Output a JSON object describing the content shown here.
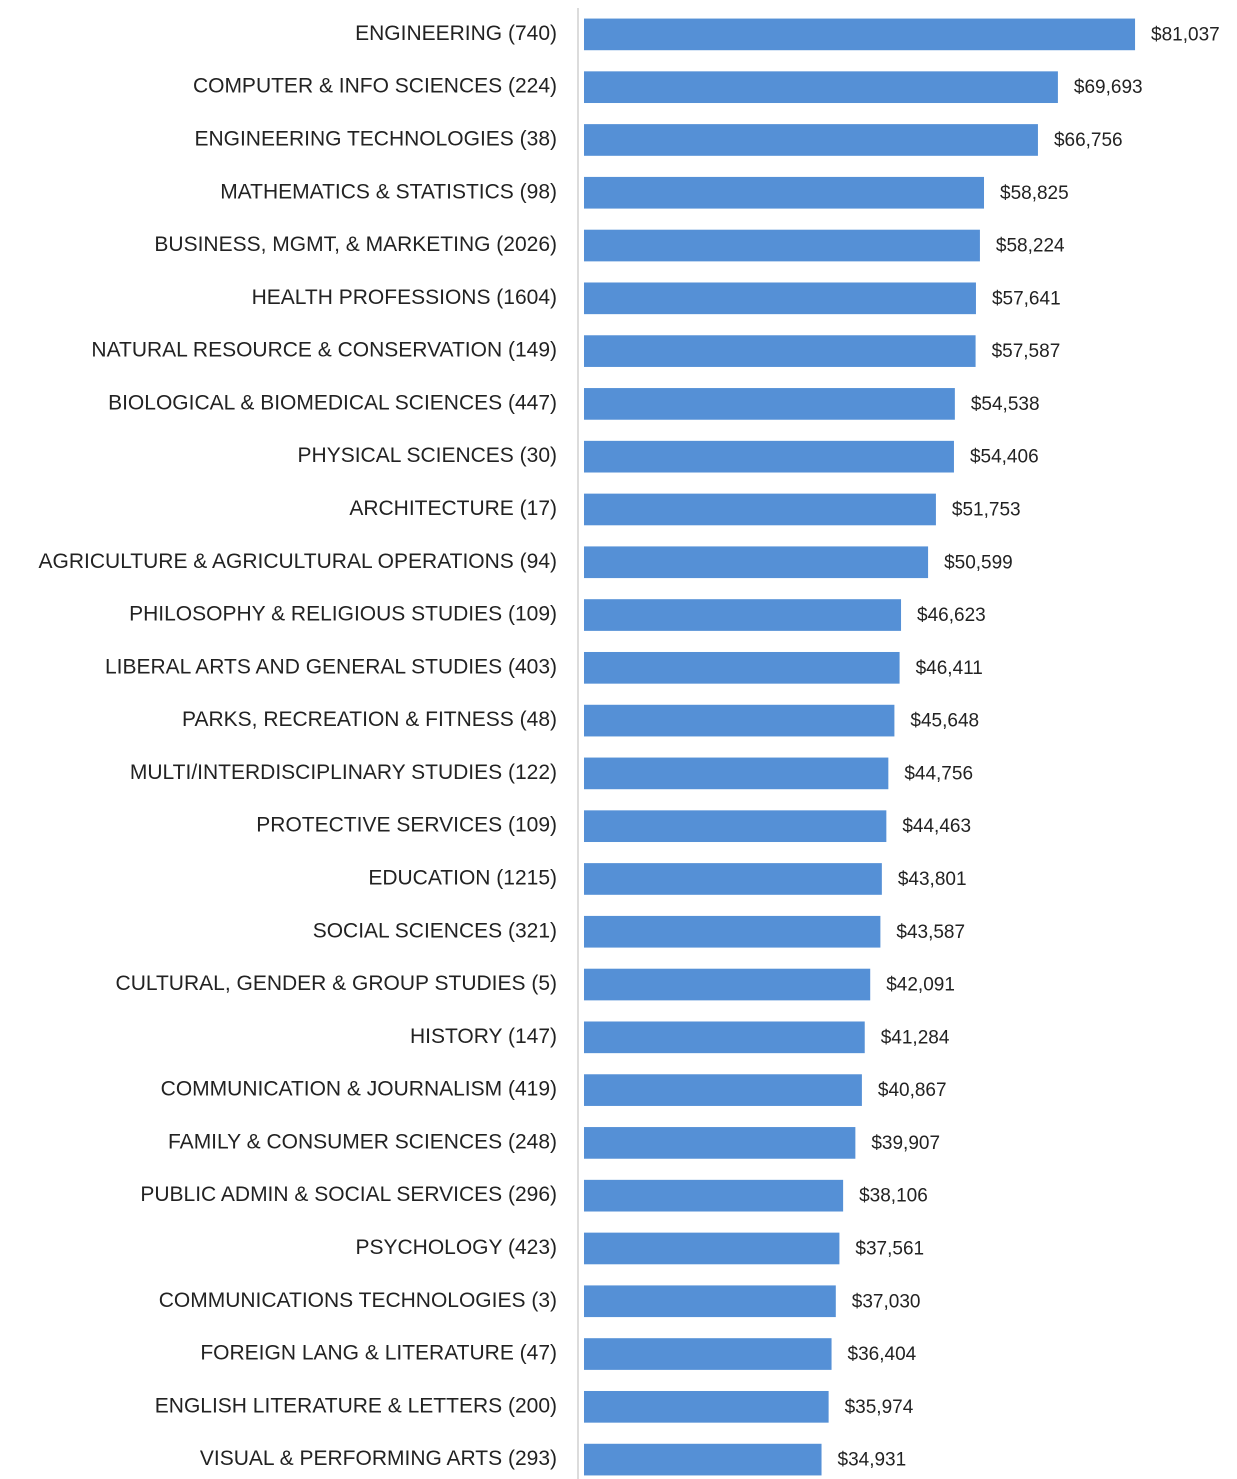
{
  "chart_data": {
    "type": "barh",
    "categories": [
      "ENGINEERING (740)",
      "COMPUTER & INFO SCIENCES (224)",
      "ENGINEERING TECHNOLOGIES (38)",
      "MATHEMATICS & STATISTICS (98)",
      "BUSINESS, MGMT, & MARKETING (2026)",
      "HEALTH PROFESSIONS (1604)",
      "NATURAL RESOURCE & CONSERVATION (149)",
      "BIOLOGICAL & BIOMEDICAL SCIENCES (447)",
      "PHYSICAL SCIENCES (30)",
      "ARCHITECTURE (17)",
      "AGRICULTURE & AGRICULTURAL OPERATIONS (94)",
      "PHILOSOPHY & RELIGIOUS STUDIES (109)",
      "LIBERAL ARTS AND GENERAL STUDIES (403)",
      "PARKS, RECREATION & FITNESS (48)",
      "MULTI/INTERDISCIPLINARY STUDIES (122)",
      "PROTECTIVE SERVICES (109)",
      "EDUCATION (1215)",
      "SOCIAL SCIENCES (321)",
      "CULTURAL, GENDER & GROUP STUDIES (5)",
      "HISTORY (147)",
      "COMMUNICATION & JOURNALISM (419)",
      "FAMILY & CONSUMER SCIENCES (248)",
      "PUBLIC ADMIN & SOCIAL SERVICES (296)",
      "PSYCHOLOGY (423)",
      "COMMUNICATIONS TECHNOLOGIES (3)",
      "FOREIGN LANG & LITERATURE (47)",
      "ENGLISH LITERATURE & LETTERS (200)",
      "VISUAL & PERFORMING ARTS (293)"
    ],
    "values": [
      81037,
      69693,
      66756,
      58825,
      58224,
      57641,
      57587,
      54538,
      54406,
      51753,
      50599,
      46623,
      46411,
      45648,
      44756,
      44463,
      43801,
      43587,
      42091,
      41284,
      40867,
      39907,
      38106,
      37561,
      37030,
      36404,
      35974,
      34931
    ],
    "value_labels": [
      "$81,037",
      "$69,693",
      "$66,756",
      "$58,825",
      "$58,224",
      "$57,641",
      "$57,587",
      "$54,538",
      "$54,406",
      "$51,753",
      "$50,599",
      "$46,623",
      "$46,411",
      "$45,648",
      "$44,756",
      "$44,463",
      "$43,801",
      "$43,587",
      "$42,091",
      "$41,284",
      "$40,867",
      "$39,907",
      "$38,106",
      "$37,561",
      "$37,030",
      "$36,404",
      "$35,974",
      "$34,931"
    ],
    "color": "#5590d6",
    "xlim": [
      0,
      90000
    ]
  }
}
